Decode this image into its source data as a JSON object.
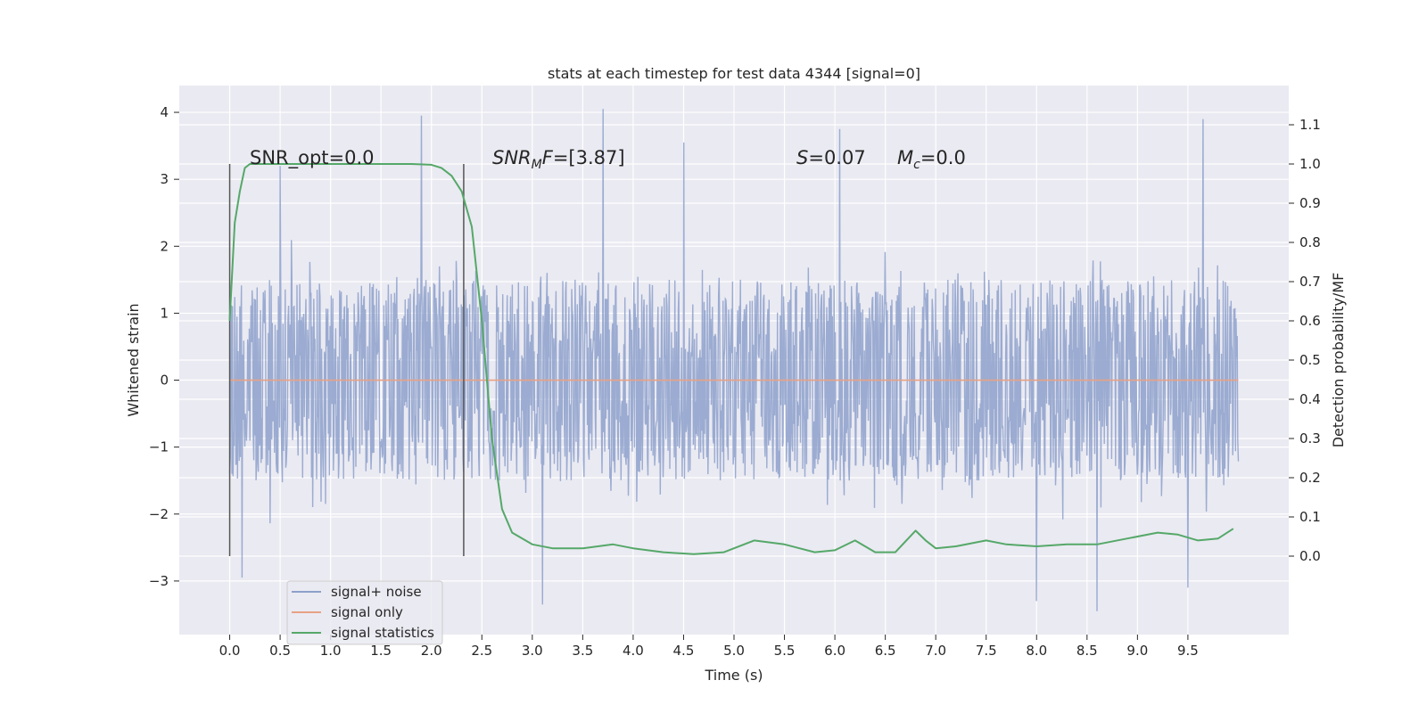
{
  "chart_data": {
    "type": "line",
    "title": "stats at each timestep for test data 4344 [signal=0]",
    "xlabel": "Time (s)",
    "ylabel_left": "Whitened strain",
    "ylabel_right": "Detection probability/MF",
    "xlim": [
      -0.5,
      10.5
    ],
    "ylim_left": [
      -3.8,
      4.4
    ],
    "ylim_right": [
      -0.2,
      1.2
    ],
    "x_ticks": [
      "0.0",
      "0.5",
      "1.0",
      "1.5",
      "2.0",
      "2.5",
      "3.0",
      "3.5",
      "4.0",
      "4.5",
      "5.0",
      "5.5",
      "6.0",
      "6.5",
      "7.0",
      "7.5",
      "8.0",
      "8.5",
      "9.0",
      "9.5"
    ],
    "y_ticks_left": [
      "4",
      "3",
      "2",
      "1",
      "0",
      "−1",
      "−2",
      "−3"
    ],
    "y_ticks_right": [
      "1.1",
      "1.0",
      "0.9",
      "0.8",
      "0.7",
      "0.6",
      "0.5",
      "0.4",
      "0.3",
      "0.2",
      "0.1",
      "0.0"
    ],
    "grid": true,
    "legend_position": "lower-left",
    "vlines_x": [
      0.0,
      2.32
    ],
    "annotations": [
      {
        "id": "snr-opt",
        "text": "SNR_opt=0.0",
        "italic": false
      },
      {
        "id": "snr-mf",
        "prefix": "SNR",
        "sub": "M",
        "suffix": "F",
        "value": "=[3.87]"
      },
      {
        "id": "s-stat",
        "sym": "S",
        "value": "=0.07"
      },
      {
        "id": "mc-stat",
        "sym": "M",
        "sub": "c",
        "value": "=0.0"
      }
    ],
    "series": [
      {
        "name": "signal+ noise",
        "color": "#8da0cb",
        "axis": "left",
        "description_stats": {
          "x_range": [
            0.0,
            10.0
          ],
          "core_amplitude": 1.5,
          "peak_max": 4.05,
          "peak_min": -3.45
        },
        "peaks": [
          [
            1.9,
            3.95
          ],
          [
            3.7,
            4.05
          ],
          [
            9.65,
            3.9
          ],
          [
            0.5,
            3.2
          ],
          [
            4.5,
            3.55
          ],
          [
            6.05,
            3.75
          ],
          [
            3.1,
            -3.35
          ],
          [
            8.6,
            -3.45
          ],
          [
            8.0,
            -3.3
          ],
          [
            0.12,
            -2.95
          ],
          [
            9.5,
            -3.1
          ]
        ]
      },
      {
        "name": "signal only",
        "color": "#e8a285",
        "axis": "left",
        "x": [
          0.0,
          10.0
        ],
        "y": [
          0.0,
          0.0
        ]
      },
      {
        "name": "signal statistics",
        "color": "#55a868",
        "axis": "right",
        "x": [
          0.0,
          0.05,
          0.1,
          0.15,
          0.2,
          0.3,
          0.5,
          1.0,
          1.5,
          1.8,
          2.0,
          2.1,
          2.2,
          2.3,
          2.4,
          2.5,
          2.55,
          2.6,
          2.7,
          2.8,
          3.0,
          3.2,
          3.5,
          3.8,
          4.0,
          4.3,
          4.6,
          4.9,
          5.2,
          5.5,
          5.8,
          6.0,
          6.2,
          6.4,
          6.6,
          6.8,
          6.9,
          7.0,
          7.2,
          7.5,
          7.7,
          8.0,
          8.3,
          8.6,
          8.9,
          9.2,
          9.4,
          9.6,
          9.8,
          9.95
        ],
        "y": [
          0.6,
          0.85,
          0.93,
          0.99,
          1.0,
          1.0,
          1.0,
          1.0,
          1.0,
          1.0,
          0.998,
          0.99,
          0.97,
          0.93,
          0.84,
          0.6,
          0.45,
          0.3,
          0.12,
          0.06,
          0.03,
          0.02,
          0.02,
          0.03,
          0.02,
          0.01,
          0.005,
          0.01,
          0.04,
          0.03,
          0.01,
          0.015,
          0.04,
          0.01,
          0.01,
          0.065,
          0.04,
          0.02,
          0.025,
          0.04,
          0.03,
          0.025,
          0.03,
          0.03,
          0.045,
          0.06,
          0.055,
          0.04,
          0.045,
          0.07
        ]
      }
    ]
  }
}
